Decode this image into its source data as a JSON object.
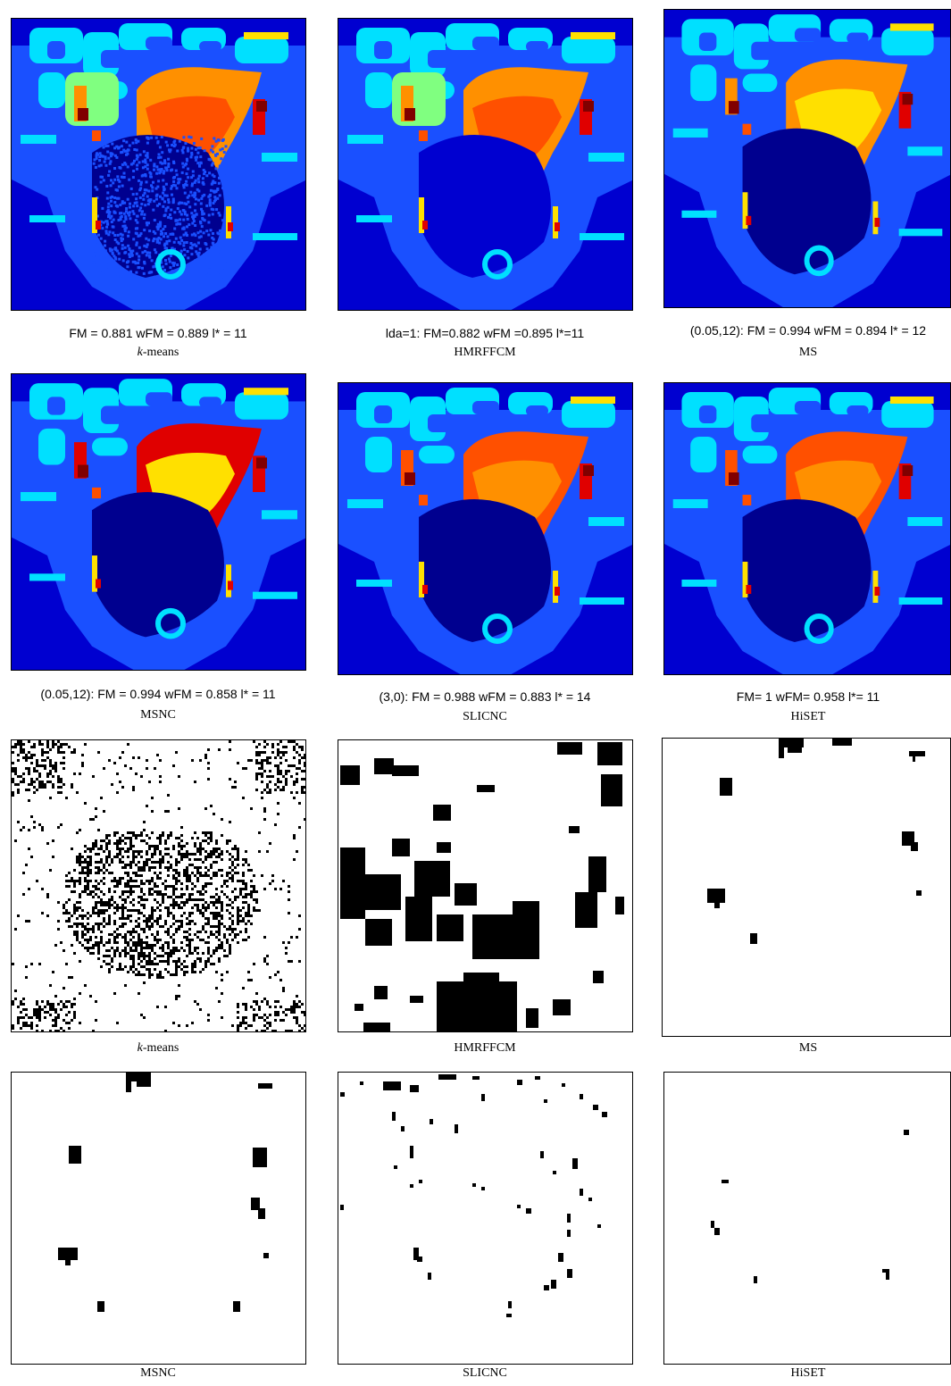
{
  "colors": {
    "bg_dark": "#00008f",
    "bg_mid": "#0000d0",
    "bg_blue": "#1a50ff",
    "blue_light": "#00a0ff",
    "cyan": "#00e0ff",
    "green": "#80ff80",
    "yellow": "#ffe000",
    "orange": "#ff9000",
    "red_orange": "#ff5000",
    "red": "#e00000",
    "dark_red": "#800000"
  },
  "panels": [
    {
      "metrics": "FM = 0.881 wFM = 0.889 l* = 11",
      "method": "k-means",
      "method_italic_prefix": "k",
      "method_rest": "-means"
    },
    {
      "metrics": "lda=1: FM=0.882 wFM =0.895 l*=11",
      "method": "HMRFFCM"
    },
    {
      "metrics": "(0.05,12): FM = 0.994 wFM = 0.894 l* = 12",
      "method": "MS"
    },
    {
      "metrics": "(0.05,12): FM = 0.994 wFM = 0.858 l* = 11",
      "method": "MSNC"
    },
    {
      "metrics": "(3,0): FM = 0.988 wFM = 0.883 l* = 14",
      "method": "SLICNC"
    },
    {
      "metrics": "FM= 1 wFM= 0.958  l*= 11",
      "method": "HiSET"
    }
  ],
  "error_panels": [
    {
      "method_italic_prefix": "k",
      "method_rest": "-means"
    },
    {
      "method": "HMRFFCM"
    },
    {
      "method": "MS"
    },
    {
      "method": "MSNC"
    },
    {
      "method": "SLICNC"
    },
    {
      "method": "HiSET"
    }
  ]
}
